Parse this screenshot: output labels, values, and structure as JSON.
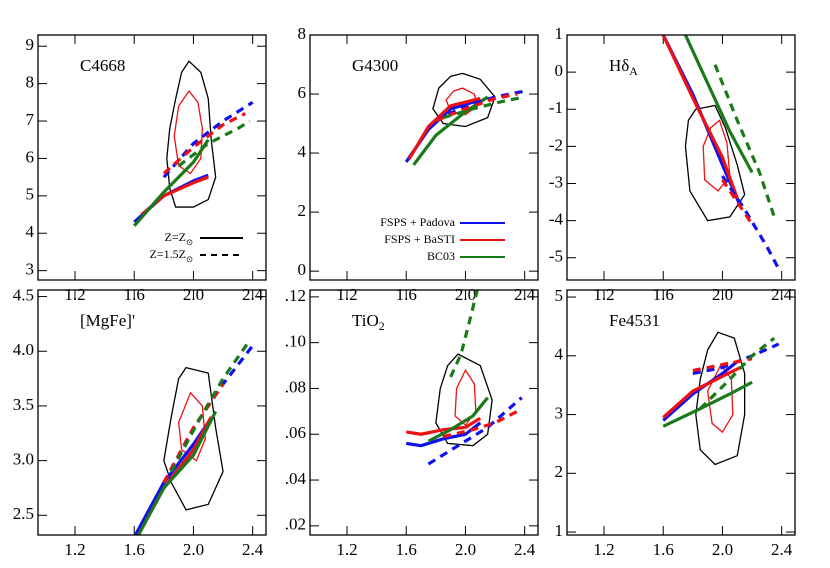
{
  "chart_data": [
    {
      "type": "line",
      "title": "C4668",
      "xlim": [
        0.95,
        2.49
      ],
      "xticks": [
        1.2,
        1.6,
        {
          "value": 2.0,
          "label": "2.0"
        },
        2.4
      ],
      "ylim": [
        2.75,
        9.3
      ],
      "yticks": [
        3,
        4,
        5,
        6,
        7,
        8,
        9
      ],
      "contours": [
        {
          "color": "#000000",
          "x": [
            1.97,
            2.05,
            2.1,
            2.12,
            2.15,
            2.1,
            2.0,
            1.88,
            1.84,
            1.82,
            1.84,
            1.88,
            1.92
          ],
          "y": [
            8.6,
            8.3,
            7.6,
            6.5,
            5.5,
            4.9,
            4.7,
            4.7,
            5.2,
            6.0,
            6.8,
            7.6,
            8.3
          ]
        },
        {
          "color": "#ee1111",
          "x": [
            1.97,
            2.03,
            2.06,
            2.05,
            1.98,
            1.9,
            1.87,
            1.9
          ],
          "y": [
            7.8,
            7.5,
            6.8,
            6.0,
            5.6,
            5.8,
            6.6,
            7.4
          ]
        }
      ],
      "series": [
        {
          "color": "#1010ee",
          "dashed": false,
          "x": [
            1.6,
            1.8,
            2.0,
            2.1
          ],
          "values": [
            4.3,
            5.0,
            5.4,
            5.55
          ]
        },
        {
          "color": "#ee1111",
          "dashed": false,
          "x": [
            1.65,
            1.8,
            2.0,
            2.1
          ],
          "values": [
            4.5,
            5.0,
            5.35,
            5.5
          ]
        },
        {
          "color": "#1a7a1a",
          "dashed": false,
          "x": [
            1.6,
            1.8,
            2.0,
            2.1
          ],
          "values": [
            4.2,
            5.1,
            5.9,
            6.5
          ]
        },
        {
          "color": "#1010ee",
          "dashed": true,
          "x": [
            1.8,
            2.0,
            2.2,
            2.4
          ],
          "values": [
            5.5,
            6.4,
            7.0,
            7.5
          ]
        },
        {
          "color": "#ee1111",
          "dashed": true,
          "x": [
            1.8,
            2.0,
            2.2,
            2.35
          ],
          "values": [
            5.6,
            6.3,
            6.9,
            7.2
          ]
        },
        {
          "color": "#1a7a1a",
          "dashed": true,
          "x": [
            1.9,
            2.1,
            2.3,
            2.38
          ],
          "values": [
            5.8,
            6.4,
            6.8,
            7.0
          ]
        }
      ],
      "style_legend": [
        {
          "name": "Z=Z",
          "name_sub": "⊙",
          "dashed": false
        },
        {
          "name": "Z=1.5Z",
          "name_sub": "⊙",
          "dashed": true
        }
      ]
    },
    {
      "type": "line",
      "title": "G4300",
      "xlim": [
        0.95,
        2.49
      ],
      "xticks": [
        1.2,
        1.6,
        {
          "value": 2.0,
          "label": "2.0"
        },
        2.4
      ],
      "ylim": [
        -0.3,
        8
      ],
      "yticks": [
        0,
        2,
        4,
        6,
        8
      ],
      "contours": [
        {
          "color": "#000000",
          "x": [
            1.98,
            2.1,
            2.2,
            2.15,
            2.0,
            1.85,
            1.78,
            1.82,
            1.9
          ],
          "y": [
            6.7,
            6.5,
            5.9,
            5.2,
            4.9,
            5.0,
            5.5,
            6.2,
            6.6
          ]
        },
        {
          "color": "#ee1111",
          "x": [
            1.98,
            2.06,
            2.08,
            2.0,
            1.9,
            1.87,
            1.92
          ],
          "y": [
            6.2,
            6.0,
            5.6,
            5.3,
            5.4,
            5.8,
            6.1
          ]
        }
      ],
      "series": [
        {
          "color": "#1010ee",
          "dashed": false,
          "x": [
            1.6,
            1.75,
            1.9,
            2.1
          ],
          "values": [
            3.7,
            4.8,
            5.5,
            5.8
          ]
        },
        {
          "color": "#ee1111",
          "dashed": false,
          "x": [
            1.62,
            1.75,
            1.9,
            2.1
          ],
          "values": [
            3.8,
            4.9,
            5.6,
            5.85
          ]
        },
        {
          "color": "#1a7a1a",
          "dashed": false,
          "x": [
            1.65,
            1.8,
            2.0,
            2.15
          ],
          "values": [
            3.6,
            4.6,
            5.4,
            5.9
          ]
        },
        {
          "color": "#1010ee",
          "dashed": true,
          "x": [
            1.8,
            2.0,
            2.2,
            2.4
          ],
          "values": [
            5.1,
            5.6,
            5.9,
            6.1
          ]
        },
        {
          "color": "#ee1111",
          "dashed": true,
          "x": [
            1.8,
            2.0,
            2.2,
            2.35
          ],
          "values": [
            5.1,
            5.5,
            5.85,
            6.0
          ]
        },
        {
          "color": "#1a7a1a",
          "dashed": true,
          "x": [
            1.85,
            2.05,
            2.25,
            2.4
          ],
          "values": [
            5.2,
            5.5,
            5.75,
            5.9
          ]
        }
      ],
      "legend": [
        {
          "name": "FSPS + Padova",
          "color": "#1010ee"
        },
        {
          "name": "FSPS + BaSTI",
          "color": "#ee1111"
        },
        {
          "name": "BC03",
          "color": "#1a7a1a"
        }
      ]
    },
    {
      "type": "line",
      "title": "Hδ",
      "title_sub": "A",
      "xlim": [
        0.95,
        2.49
      ],
      "xticks": [
        1.2,
        1.6,
        {
          "value": 2.0,
          "label": "2.0"
        },
        2.4
      ],
      "ylim": [
        -5.6,
        1.0
      ],
      "yticks": [
        -5,
        -4,
        -3,
        -2,
        -1,
        0,
        1
      ],
      "contours": [
        {
          "color": "#000000",
          "x": [
            1.82,
            1.95,
            2.02,
            2.1,
            2.15,
            2.05,
            1.9,
            1.78,
            1.75,
            1.77
          ],
          "y": [
            -1.0,
            -0.9,
            -1.5,
            -2.5,
            -3.3,
            -3.9,
            -4.0,
            -3.2,
            -2.0,
            -1.3
          ]
        },
        {
          "color": "#ee1111",
          "x": [
            1.98,
            2.03,
            2.05,
            1.97,
            1.88,
            1.87,
            1.92
          ],
          "y": [
            -1.3,
            -1.9,
            -2.8,
            -3.2,
            -2.9,
            -2.0,
            -1.5
          ]
        }
      ],
      "series": [
        {
          "color": "#1010ee",
          "dashed": false,
          "x": [
            1.6,
            1.8,
            2.0,
            2.12
          ],
          "values": [
            1.0,
            -0.6,
            -2.5,
            -3.6
          ]
        },
        {
          "color": "#ee1111",
          "dashed": false,
          "x": [
            1.6,
            1.8,
            2.0,
            2.1
          ],
          "values": [
            1.0,
            -0.7,
            -2.3,
            -3.4
          ]
        },
        {
          "color": "#1a7a1a",
          "dashed": false,
          "x": [
            1.75,
            1.9,
            2.05,
            2.2
          ],
          "values": [
            1.0,
            -0.3,
            -1.6,
            -2.7
          ]
        },
        {
          "color": "#1010ee",
          "dashed": true,
          "x": [
            2.0,
            2.15,
            2.3,
            2.38
          ],
          "values": [
            -2.8,
            -3.7,
            -4.7,
            -5.3
          ]
        },
        {
          "color": "#ee1111",
          "dashed": true,
          "x": [
            2.0,
            2.1,
            2.2
          ],
          "values": [
            -2.9,
            -3.5,
            -4.1
          ]
        },
        {
          "color": "#1a7a1a",
          "dashed": true,
          "x": [
            1.95,
            2.1,
            2.25,
            2.35
          ],
          "values": [
            0.2,
            -1.3,
            -2.7,
            -3.9
          ]
        }
      ]
    },
    {
      "type": "line",
      "title": "[MgFe]'",
      "xlim": [
        0.95,
        2.49
      ],
      "xticks": [
        1.2,
        1.6,
        {
          "value": 2.0,
          "label": "2.0"
        },
        2.4
      ],
      "ylim": [
        2.32,
        4.56
      ],
      "yticks": [
        2.5,
        {
          "value": 3.0,
          "label": "3.0"
        },
        3.5,
        {
          "value": 4.0,
          "label": "4.0"
        },
        4.5
      ],
      "contours": [
        {
          "color": "#000000",
          "x": [
            1.95,
            2.1,
            2.15,
            2.2,
            2.1,
            1.95,
            1.85,
            1.8,
            1.85,
            1.9
          ],
          "y": [
            3.85,
            3.8,
            3.3,
            2.9,
            2.6,
            2.55,
            2.8,
            3.0,
            3.4,
            3.75
          ]
        },
        {
          "color": "#ee1111",
          "x": [
            1.98,
            2.06,
            2.08,
            2.02,
            1.92,
            1.9
          ],
          "y": [
            3.62,
            3.5,
            3.2,
            3.0,
            3.1,
            3.35
          ]
        }
      ],
      "series": [
        {
          "color": "#1010ee",
          "dashed": false,
          "x": [
            1.6,
            1.8,
            2.0,
            2.1
          ],
          "values": [
            2.3,
            2.8,
            3.15,
            3.35
          ]
        },
        {
          "color": "#ee1111",
          "dashed": false,
          "x": [
            1.62,
            1.8,
            2.0,
            2.12
          ],
          "values": [
            2.3,
            2.75,
            3.1,
            3.4
          ]
        },
        {
          "color": "#1a7a1a",
          "dashed": false,
          "x": [
            1.62,
            1.8,
            2.0,
            2.15
          ],
          "values": [
            2.3,
            2.75,
            3.05,
            3.45
          ]
        },
        {
          "color": "#1010ee",
          "dashed": true,
          "x": [
            1.8,
            2.0,
            2.2,
            2.4
          ],
          "values": [
            2.8,
            3.3,
            3.7,
            4.05
          ]
        },
        {
          "color": "#ee1111",
          "dashed": true,
          "x": [
            1.8,
            2.0,
            2.2
          ],
          "values": [
            2.8,
            3.3,
            3.7
          ]
        },
        {
          "color": "#1a7a1a",
          "dashed": true,
          "x": [
            1.85,
            2.05,
            2.2,
            2.38
          ],
          "values": [
            2.9,
            3.4,
            3.75,
            4.1
          ]
        }
      ]
    },
    {
      "type": "line",
      "title": "TiO",
      "title_sub": "2",
      "xlim": [
        0.95,
        2.49
      ],
      "xticks": [
        1.2,
        1.6,
        {
          "value": 2.0,
          "label": "2.0"
        },
        2.4
      ],
      "ylim": [
        0.016,
        0.123
      ],
      "yticks": [
        {
          "value": 0.02,
          "label": ".02"
        },
        {
          "value": 0.04,
          "label": ".04"
        },
        {
          "value": 0.06,
          "label": ".06"
        },
        {
          "value": 0.08,
          "label": ".08"
        },
        {
          "value": 0.1,
          "label": ".10"
        },
        {
          "value": 0.12,
          "label": ".12"
        }
      ],
      "contours": [
        {
          "color": "#000000",
          "x": [
            1.95,
            2.1,
            2.18,
            2.15,
            2.05,
            1.88,
            1.8,
            1.83,
            1.88
          ],
          "y": [
            0.095,
            0.09,
            0.075,
            0.06,
            0.055,
            0.056,
            0.065,
            0.08,
            0.09
          ]
        },
        {
          "color": "#ee1111",
          "x": [
            2.0,
            2.06,
            2.07,
            2.0,
            1.93,
            1.94
          ],
          "y": [
            0.088,
            0.082,
            0.07,
            0.064,
            0.068,
            0.08
          ]
        }
      ],
      "series": [
        {
          "color": "#1010ee",
          "dashed": false,
          "x": [
            1.6,
            1.7,
            1.85,
            2.0,
            2.1
          ],
          "values": [
            0.056,
            0.055,
            0.058,
            0.06,
            0.065
          ]
        },
        {
          "color": "#ee1111",
          "dashed": false,
          "x": [
            1.6,
            1.7,
            1.85,
            2.0,
            2.1
          ],
          "values": [
            0.061,
            0.06,
            0.062,
            0.063,
            0.067
          ]
        },
        {
          "color": "#1a7a1a",
          "dashed": false,
          "x": [
            1.75,
            1.9,
            2.05,
            2.15
          ],
          "values": [
            0.057,
            0.062,
            0.068,
            0.076
          ]
        },
        {
          "color": "#1010ee",
          "dashed": true,
          "x": [
            1.75,
            1.95,
            2.15,
            2.38
          ],
          "values": [
            0.047,
            0.055,
            0.063,
            0.076
          ]
        },
        {
          "color": "#ee1111",
          "dashed": true,
          "x": [
            1.85,
            2.05,
            2.2,
            2.35
          ],
          "values": [
            0.059,
            0.062,
            0.065,
            0.07
          ]
        },
        {
          "color": "#1a7a1a",
          "dashed": true,
          "x": [
            1.9,
            1.97,
            2.03,
            2.08
          ],
          "values": [
            0.085,
            0.095,
            0.11,
            0.123
          ]
        }
      ]
    },
    {
      "type": "line",
      "title": "Fe4531",
      "xlim": [
        0.95,
        2.49
      ],
      "xticks": [
        1.2,
        1.6,
        {
          "value": 2.0,
          "label": "2.0"
        },
        2.4
      ],
      "ylim": [
        0.95,
        5.12
      ],
      "yticks": [
        1,
        2,
        3,
        4,
        5
      ],
      "contours": [
        {
          "color": "#000000",
          "x": [
            1.97,
            2.08,
            2.15,
            2.15,
            2.1,
            1.95,
            1.85,
            1.82,
            1.85,
            1.9
          ],
          "y": [
            4.4,
            4.3,
            3.7,
            3.0,
            2.3,
            2.15,
            2.4,
            3.0,
            3.6,
            4.1
          ]
        },
        {
          "color": "#ee1111",
          "x": [
            1.99,
            2.06,
            2.07,
            2.0,
            1.93,
            1.9
          ],
          "y": [
            3.85,
            3.6,
            3.0,
            2.7,
            2.85,
            3.4
          ]
        }
      ],
      "series": [
        {
          "color": "#1010ee",
          "dashed": false,
          "x": [
            1.6,
            1.8,
            2.0,
            2.1
          ],
          "values": [
            2.9,
            3.35,
            3.7,
            3.9
          ]
        },
        {
          "color": "#ee1111",
          "dashed": false,
          "x": [
            1.6,
            1.8,
            2.0,
            2.12
          ],
          "values": [
            2.95,
            3.4,
            3.65,
            3.8
          ]
        },
        {
          "color": "#1a7a1a",
          "dashed": false,
          "x": [
            1.6,
            1.85,
            2.05,
            2.2
          ],
          "values": [
            2.8,
            3.1,
            3.35,
            3.55
          ]
        },
        {
          "color": "#1010ee",
          "dashed": true,
          "x": [
            1.8,
            2.0,
            2.2,
            2.38
          ],
          "values": [
            3.7,
            3.8,
            4.0,
            4.2
          ]
        },
        {
          "color": "#ee1111",
          "dashed": true,
          "x": [
            1.8,
            2.0,
            2.2
          ],
          "values": [
            3.75,
            3.85,
            3.95
          ]
        },
        {
          "color": "#1a7a1a",
          "dashed": true,
          "x": [
            1.85,
            2.05,
            2.2,
            2.35
          ],
          "values": [
            3.1,
            3.6,
            4.0,
            4.3
          ]
        }
      ]
    }
  ]
}
